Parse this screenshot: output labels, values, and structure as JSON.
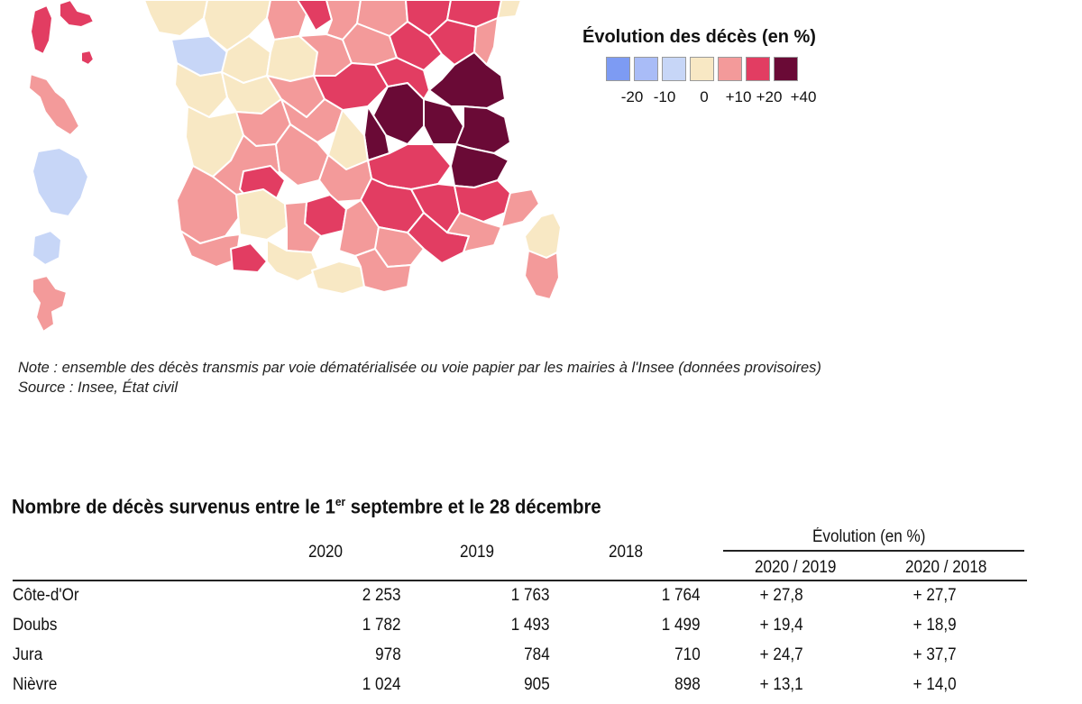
{
  "legend": {
    "title": "Évolution des décès (en %)",
    "ticks": [
      "-20",
      "-10",
      "0",
      "+10",
      "+20",
      "+40"
    ],
    "colors": [
      "#7d9bf3",
      "#a9bcf7",
      "#c7d6f7",
      "#f8e8c4",
      "#f39a9a",
      "#e23d62",
      "#6a0a36"
    ]
  },
  "note": "Note : ensemble des décès transmis par voie dématérialisée ou voie papier par les mairies à l'Insee (données provisoires)",
  "source": "Source : Insee, État civil",
  "table": {
    "title_part1": "Nombre de décès survenus entre le 1",
    "title_sup": "er",
    "title_part2": " septembre et le 28 décembre",
    "columns": [
      "2020",
      "2019",
      "2018"
    ],
    "evolution_header": "Évolution (en %)",
    "evolution_columns": [
      "2020 / 2019",
      "2020 / 2018"
    ],
    "rows": [
      {
        "name": "Côte-d'Or",
        "y2020": "2 253",
        "y2019": "1 763",
        "y2018": "1 764",
        "e1": "+ 27,8",
        "e2": "+ 27,7"
      },
      {
        "name": "Doubs",
        "y2020": "1 782",
        "y2019": "1 493",
        "y2018": "1 499",
        "e1": "+ 19,4",
        "e2": "+ 18,9"
      },
      {
        "name": "Jura",
        "y2020": "978",
        "y2019": "784",
        "y2018": "710",
        "e1": "+ 24,7",
        "e2": "+ 37,7"
      },
      {
        "name": "Nièvre",
        "y2020": "1 024",
        "y2019": "905",
        "y2018": "898",
        "e1": "+ 13,1",
        "e2": "+ 14,0"
      }
    ]
  }
}
